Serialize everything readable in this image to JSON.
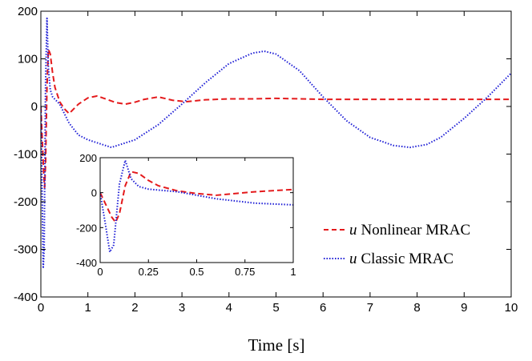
{
  "chart_data": {
    "type": "line",
    "xlabel": "Time [s]",
    "ylabel": "",
    "xlim": [
      0,
      10
    ],
    "ylim": [
      -400,
      200
    ],
    "xticks": [
      0,
      1,
      2,
      3,
      4,
      5,
      6,
      7,
      8,
      9,
      10
    ],
    "yticks": [
      200,
      100,
      0,
      -100,
      -200,
      -300,
      -400
    ],
    "grid": false,
    "legend_position": "bottom-right",
    "series": [
      {
        "name": "u Nonlinear MRAC",
        "symbol": "u",
        "label": "Nonlinear MRAC",
        "color": "#e41a1c",
        "style": "dashed",
        "x": [
          0,
          0.03,
          0.06,
          0.08,
          0.1,
          0.13,
          0.16,
          0.2,
          0.25,
          0.3,
          0.4,
          0.5,
          0.6,
          0.8,
          1.0,
          1.2,
          1.4,
          1.6,
          1.8,
          2.0,
          2.2,
          2.5,
          2.8,
          3.1,
          3.5,
          4.0,
          4.5,
          5.0,
          6.0,
          7.0,
          8.0,
          9.0,
          10.0
        ],
        "y": [
          0,
          -70,
          -140,
          -170,
          -120,
          40,
          120,
          110,
          70,
          40,
          10,
          -5,
          -15,
          5,
          18,
          22,
          15,
          8,
          5,
          9,
          15,
          20,
          13,
          10,
          14,
          16,
          16,
          17,
          15,
          15,
          15,
          15,
          15
        ]
      },
      {
        "name": "u Classic MRAC",
        "symbol": "u",
        "label": "Classic MRAC",
        "color": "#1f1fd6",
        "style": "dotted",
        "x": [
          0,
          0.03,
          0.05,
          0.07,
          0.1,
          0.13,
          0.16,
          0.2,
          0.25,
          0.3,
          0.4,
          0.5,
          0.6,
          0.8,
          1.0,
          1.5,
          2.0,
          2.5,
          3.0,
          3.5,
          4.0,
          4.5,
          4.75,
          5.0,
          5.5,
          6.0,
          6.5,
          7.0,
          7.5,
          7.85,
          8.2,
          8.5,
          9.0,
          9.5,
          10.0
        ],
        "y": [
          0,
          -200,
          -340,
          -300,
          50,
          185,
          80,
          35,
          20,
          15,
          5,
          -15,
          -35,
          -60,
          -70,
          -86,
          -70,
          -38,
          5,
          50,
          90,
          112,
          116,
          110,
          75,
          20,
          -30,
          -65,
          -82,
          -86,
          -80,
          -65,
          -25,
          20,
          70
        ]
      }
    ],
    "inset": {
      "xlim": [
        0,
        1
      ],
      "ylim": [
        -400,
        200
      ],
      "xticks": [
        0,
        0.25,
        0.5,
        0.75,
        1
      ],
      "xtick_labels": [
        "0",
        "0.25",
        "0.5",
        "0.75",
        "1"
      ],
      "yticks": [
        200,
        0,
        -200,
        -400
      ]
    }
  }
}
